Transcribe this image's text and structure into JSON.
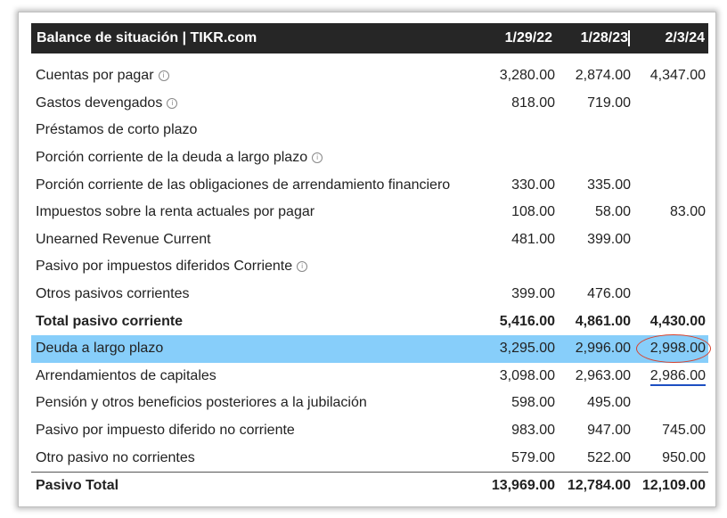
{
  "header": {
    "title": "Balance de situación | TIKR.com",
    "col1": "1/29/22",
    "col2": "1/28/23",
    "col3": "2/3/24",
    "info_glyph": "i"
  },
  "rows": [
    {
      "label": "Cuentas por pagar",
      "v1": "3,280.00",
      "v2": "2,874.00",
      "v3": "4,347.00"
    },
    {
      "label": "Gastos devengados",
      "v1": "818.00",
      "v2": "719.00",
      "v3": ""
    },
    {
      "label": "Préstamos de corto plazo",
      "v1": "",
      "v2": "",
      "v3": ""
    },
    {
      "label": "Porción corriente de la deuda a largo plazo",
      "v1": "",
      "v2": "",
      "v3": ""
    },
    {
      "label": "Porción corriente de las obligaciones de arrendamiento financiero",
      "v1": "330.00",
      "v2": "335.00",
      "v3": ""
    },
    {
      "label": "Impuestos sobre la renta actuales por pagar",
      "v1": "108.00",
      "v2": "58.00",
      "v3": "83.00"
    },
    {
      "label": "Unearned Revenue Current",
      "v1": "481.00",
      "v2": "399.00",
      "v3": ""
    },
    {
      "label": "Pasivo por impuestos diferidos Corriente",
      "v1": "",
      "v2": "",
      "v3": ""
    },
    {
      "label": "Otros pasivos corrientes",
      "v1": "399.00",
      "v2": "476.00",
      "v3": ""
    },
    {
      "label": "Total pasivo corriente",
      "v1": "5,416.00",
      "v2": "4,861.00",
      "v3": "4,430.00"
    },
    {
      "label": "Deuda a largo plazo",
      "v1": "3,295.00",
      "v2": "2,996.00",
      "v3": "2,998.00"
    },
    {
      "label": "Arrendamientos de capitales",
      "v1": "3,098.00",
      "v2": "2,963.00",
      "v3": "2,986.00"
    },
    {
      "label": "Pensión y otros beneficios posteriores a la jubilación",
      "v1": "598.00",
      "v2": "495.00",
      "v3": ""
    },
    {
      "label": "Pasivo por impuesto diferido no corriente",
      "v1": "983.00",
      "v2": "947.00",
      "v3": "745.00"
    },
    {
      "label": "Otro pasivo no corrientes",
      "v1": "579.00",
      "v2": "522.00",
      "v3": "950.00"
    },
    {
      "label": "Pasivo Total",
      "v1": "13,969.00",
      "v2": "12,784.00",
      "v3": "12,109.00"
    }
  ]
}
